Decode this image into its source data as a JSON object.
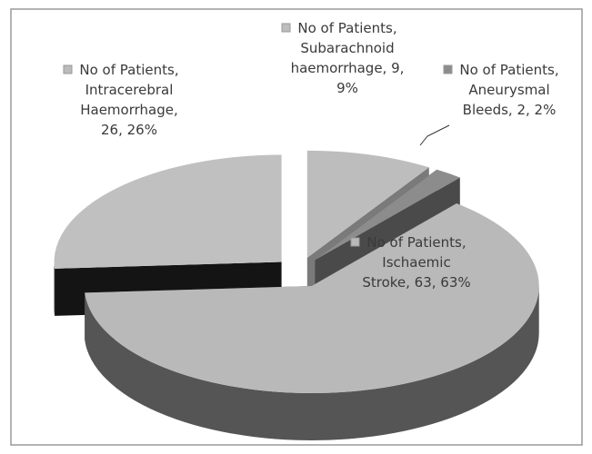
{
  "chart_data": {
    "type": "pie",
    "series_name": "No of Patients",
    "categories": [
      "Subarachnoid haemorrhage",
      "Aneurysmal Bleeds",
      "Ischaemic Stroke",
      "Intracerebral Haemorrhage"
    ],
    "values": [
      9,
      2,
      63,
      26
    ],
    "value_labels": [
      "No of Patients, Subarachnoid haemorrhage, 9, 9%",
      "No of Patients, Aneurysmal Bleeds, 2, 2%",
      "No of Patients, Ischaemic Stroke, 63, 63%",
      "No of Patients, Intracerebral Haemorrhage, 26, 26%"
    ],
    "colors": [
      "#bdbdbd",
      "#8c8c8c",
      "#b9b9b9",
      "#c0c0c0"
    ],
    "side_colors": [
      "#7a7a7a",
      "#4a4a4a",
      "#555555",
      "#141414"
    ]
  }
}
